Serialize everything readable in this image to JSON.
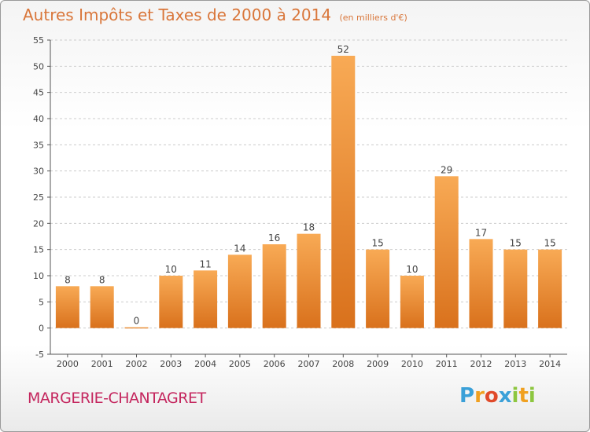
{
  "header": {
    "title": "Autres Impôts et Taxes de 2000 à 2014",
    "subtitle": "(en milliers d'€)"
  },
  "footer": {
    "commune": "MARGERIE-CHANTAGRET",
    "logo": [
      "P",
      "r",
      "o",
      "x",
      "i",
      "t",
      "i"
    ],
    "logo_colors": [
      "#3aa0d8",
      "#f0a020",
      "#e04a2a",
      "#3aa0d8",
      "#8dc63f",
      "#f0a020",
      "#8dc63f"
    ]
  },
  "colors": {
    "bar_top": "#f8aa55",
    "bar_bottom": "#d9711c",
    "grid": "#cccccc",
    "title": "#d9763a",
    "commune": "#c4265e"
  },
  "chart_data": {
    "type": "bar",
    "categories": [
      "2000",
      "2001",
      "2002",
      "2003",
      "2004",
      "2005",
      "2006",
      "2007",
      "2008",
      "2009",
      "2010",
      "2011",
      "2012",
      "2013",
      "2014"
    ],
    "values": [
      8,
      8,
      0,
      10,
      11,
      14,
      16,
      18,
      52,
      15,
      10,
      29,
      17,
      15,
      15
    ],
    "title": "Autres Impôts et Taxes de 2000 à 2014",
    "ylim": [
      -5,
      55
    ],
    "yticks": [
      -5,
      0,
      5,
      10,
      15,
      20,
      25,
      30,
      35,
      40,
      45,
      50,
      55
    ],
    "grid": true
  }
}
